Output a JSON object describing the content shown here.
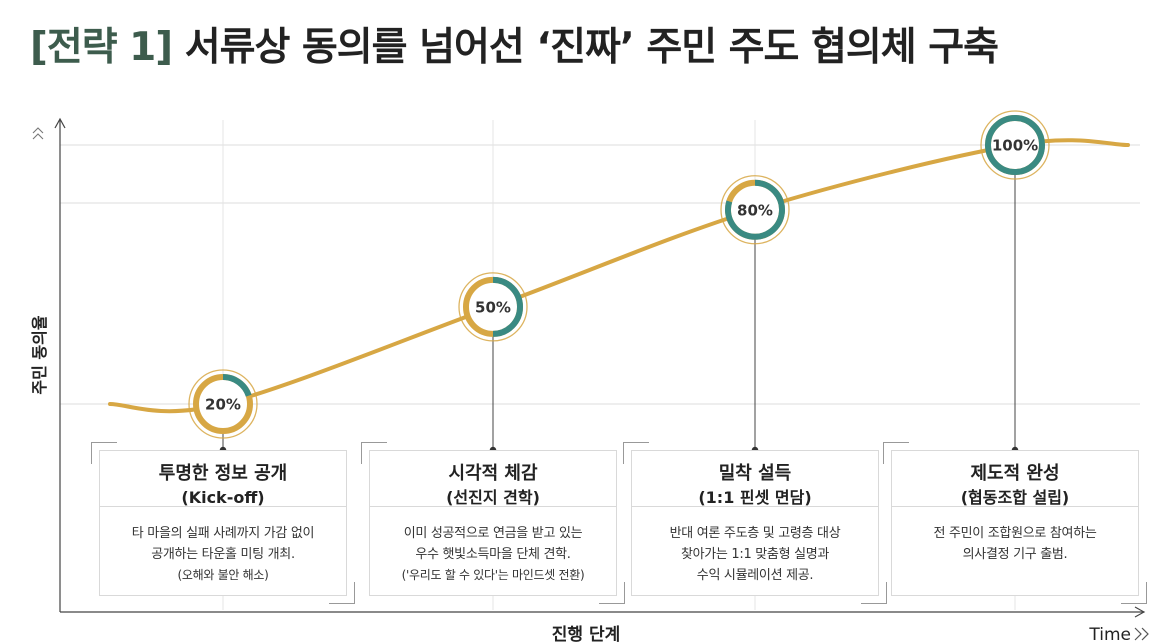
{
  "title": {
    "bracket": "[전략 1]",
    "main": "서류상 동의를 넘어선 ‘진짜’ 주민 주도 협의체 구축"
  },
  "chart_data": {
    "type": "line",
    "title": "[전략 1] 서류상 동의를 넘어선 ‘진짜’ 주민 주도 협의체 구축",
    "xlabel": "진행 단계",
    "ylabel": "주민 동의율",
    "x_end_label": "Time",
    "ylim": [
      0,
      100
    ],
    "categories": [
      "투명한 정보 공개",
      "시각적 체감",
      "밀착 설득",
      "제도적 완성"
    ],
    "values": [
      20,
      50,
      80,
      100
    ],
    "value_labels": [
      "20%",
      "50%",
      "80%",
      "100%"
    ],
    "colors": {
      "line": "#d7a744",
      "ring": "#3a8a82",
      "ring_track": "#d7a744"
    }
  },
  "stages": [
    {
      "title": "투명한 정보 공개",
      "subtitle": "(Kick-off)",
      "lines": [
        "타 마을의 실패 사례까지 가감 없이",
        "공개하는 타운홀 미팅 개최.",
        "(오해와 불안 해소)"
      ]
    },
    {
      "title": "시각적 체감",
      "subtitle": "(선진지 견학)",
      "lines": [
        "이미 성공적으로 연금을 받고 있는",
        "우수 햇빛소득마을 단체 견학.",
        "('우리도 할 수 있다'는 마인드셋 전환)"
      ]
    },
    {
      "title": "밀착 설득",
      "subtitle": "(1:1 핀셋 면담)",
      "lines": [
        "반대 여론 주도층 및 고령층 대상",
        "찾아가는 1:1 맞춤형 실명과",
        "수익 시뮬레이션 제공."
      ]
    },
    {
      "title": "제도적 완성",
      "subtitle": "(협동조합 설립)",
      "lines": [
        "전 주민이 조합원으로 참여하는",
        "의사결정 기구 출범."
      ]
    }
  ]
}
